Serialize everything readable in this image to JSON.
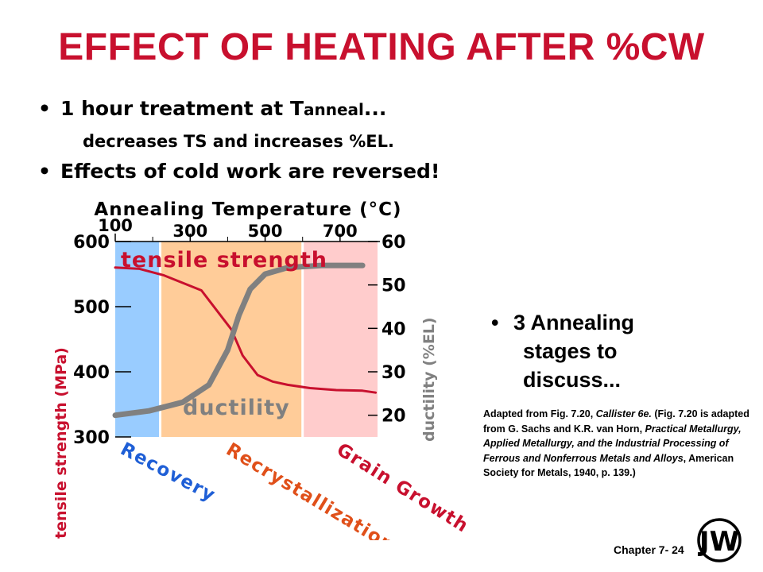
{
  "slide": {
    "title": "EFFECT OF HEATING AFTER %CW",
    "bullet1_main": "1 hour treatment at T",
    "bullet1_sub": "anneal",
    "bullet1_tail": "...",
    "bullet1_cont": "decreases TS and increases %EL.",
    "bullet2": "Effects of cold work are reversed!",
    "stages_line1": "3 Annealing",
    "stages_line2": "stages to",
    "stages_line3": "discuss...",
    "credit": {
      "p1": "Adapted from Fig. 7.20, ",
      "p2": "Callister 6e.",
      "p3": " (Fig. 7.20 is adapted from G. Sachs and K.R. van Horn, ",
      "p4": "Practical Metallurgy, Applied Metallurgy, and the Industrial Processing of Ferrous and Nonferrous Metals and Alloys",
      "p5": ", American Society for Metals, 1940, p. 139.)"
    },
    "footer": "Chapter 7- 24",
    "logo_letters": "JW"
  },
  "colors": {
    "title": "#c8102e",
    "tensile": "#c8102e",
    "ductility": "#808080",
    "recovery_region": "#99ccff",
    "recrystallization_region": "#ffcc99",
    "grain_growth_region": "#ffcccc",
    "recovery_label": "#1f5fd6",
    "recrystallization_label": "#e0501a",
    "grain_growth_label": "#c8102e"
  },
  "chart_data": {
    "type": "line",
    "title": "Annealing Temperature (°C)",
    "x_label": "Annealing Temperature (°C)",
    "x_ticks": [
      100,
      300,
      500,
      700
    ],
    "x_range": [
      100,
      800
    ],
    "y_left_label": "tensile strength (MPa)",
    "y_left_ticks": [
      300,
      400,
      500,
      600
    ],
    "y_left_range": [
      300,
      600
    ],
    "y_right_label": "ductility (%EL)",
    "y_right_ticks": [
      20,
      30,
      40,
      50,
      60
    ],
    "y_right_range": [
      15,
      60
    ],
    "regions": [
      {
        "name": "Recovery",
        "x": [
          100,
          220
        ]
      },
      {
        "name": "Recrystallization",
        "x": [
          220,
          600
        ]
      },
      {
        "name": "Grain Growth",
        "x": [
          600,
          800
        ]
      }
    ],
    "series": [
      {
        "name": "tensile strength",
        "axis": "left",
        "x": [
          100,
          165,
          230,
          330,
          410,
          440,
          480,
          520,
          560,
          620,
          690,
          760,
          795
        ],
        "values": [
          560,
          558,
          548,
          525,
          465,
          425,
          395,
          385,
          380,
          375,
          372,
          371,
          368
        ]
      },
      {
        "name": "ductility",
        "axis": "right",
        "x": [
          100,
          190,
          280,
          350,
          400,
          430,
          460,
          500,
          560,
          650,
          760
        ],
        "values": [
          20,
          21,
          23,
          27,
          35,
          43,
          49,
          52.5,
          54,
          54.5,
          54.5
        ]
      }
    ],
    "grid": false
  }
}
